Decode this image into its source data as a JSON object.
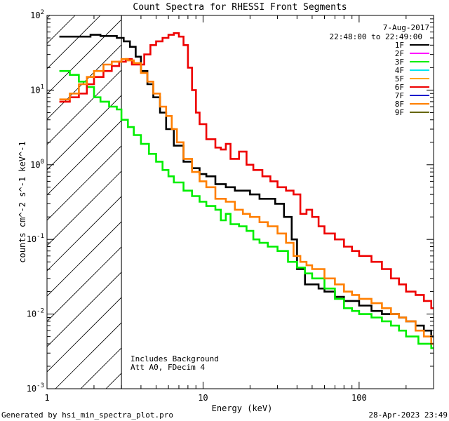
{
  "chart_data": {
    "type": "line",
    "title": "Count Spectra for RHESSI Front Segments",
    "xlabel": "Energy (keV)",
    "ylabel": "counts cm^-2 s^-1 keV^-1",
    "xscale": "log",
    "yscale": "log",
    "xlim": [
      1,
      300
    ],
    "ylim": [
      0.001,
      100
    ],
    "x_ticks": [
      {
        "value": 1,
        "label": "1"
      },
      {
        "value": 10,
        "label": "10"
      },
      {
        "value": 100,
        "label": "100"
      }
    ],
    "y_ticks": [
      {
        "value": 0.001,
        "base": "10",
        "exp": "-3"
      },
      {
        "value": 0.01,
        "base": "10",
        "exp": "-2"
      },
      {
        "value": 0.1,
        "base": "10",
        "exp": "-1"
      },
      {
        "value": 1,
        "base": "10",
        "exp": "0"
      },
      {
        "value": 10,
        "base": "10",
        "exp": "1"
      },
      {
        "value": 100,
        "base": "10",
        "exp": "2"
      }
    ],
    "attenuator_cutoff_keV": 3,
    "date": "7-Aug-2017",
    "time_range": "22:48:00 to 22:49:00",
    "annotations": [
      "Includes Background",
      "Att A0, FDecim 4"
    ],
    "footer_left": "Generated by hsi_min_spectra_plot.pro",
    "footer_right": "28-Apr-2023 23:49",
    "legend": [
      {
        "label": "1F",
        "color": "#000000"
      },
      {
        "label": "2F",
        "color": "#ff00ff"
      },
      {
        "label": "3F",
        "color": "#00ee00"
      },
      {
        "label": "4F",
        "color": "#00e5ee"
      },
      {
        "label": "5F",
        "color": "#ffa500"
      },
      {
        "label": "6F",
        "color": "#ee0000"
      },
      {
        "label": "7F",
        "color": "#0000cc"
      },
      {
        "label": "8F",
        "color": "#ff7f00"
      },
      {
        "label": "9F",
        "color": "#666600"
      }
    ],
    "series": [
      {
        "name": "1F",
        "color": "#000000",
        "points": [
          [
            1.2,
            52
          ],
          [
            1.6,
            52
          ],
          [
            1.9,
            55
          ],
          [
            2.2,
            53
          ],
          [
            2.5,
            53
          ],
          [
            2.8,
            50
          ],
          [
            3.1,
            45
          ],
          [
            3.4,
            38
          ],
          [
            3.7,
            28
          ],
          [
            4.0,
            18
          ],
          [
            4.4,
            12
          ],
          [
            4.8,
            8
          ],
          [
            5.3,
            5
          ],
          [
            5.8,
            3
          ],
          [
            6.5,
            1.8
          ],
          [
            7.5,
            1.1
          ],
          [
            8.5,
            0.9
          ],
          [
            9.5,
            0.75
          ],
          [
            10.5,
            0.7
          ],
          [
            12,
            0.55
          ],
          [
            14,
            0.5
          ],
          [
            16,
            0.45
          ],
          [
            18,
            0.45
          ],
          [
            20,
            0.4
          ],
          [
            23,
            0.35
          ],
          [
            26,
            0.35
          ],
          [
            29,
            0.3
          ],
          [
            33,
            0.2
          ],
          [
            37,
            0.1
          ],
          [
            40,
            0.04
          ],
          [
            45,
            0.025
          ],
          [
            50,
            0.025
          ],
          [
            55,
            0.022
          ],
          [
            60,
            0.02
          ],
          [
            70,
            0.017
          ],
          [
            80,
            0.015
          ],
          [
            90,
            0.015
          ],
          [
            100,
            0.013
          ],
          [
            120,
            0.011
          ],
          [
            140,
            0.01
          ],
          [
            160,
            0.01
          ],
          [
            180,
            0.009
          ],
          [
            200,
            0.008
          ],
          [
            230,
            0.007
          ],
          [
            260,
            0.006
          ],
          [
            290,
            0.005
          ]
        ]
      },
      {
        "name": "3F",
        "color": "#00ee00",
        "points": [
          [
            1.2,
            18
          ],
          [
            1.4,
            16
          ],
          [
            1.6,
            13
          ],
          [
            1.8,
            11
          ],
          [
            2.0,
            8
          ],
          [
            2.2,
            7
          ],
          [
            2.5,
            6
          ],
          [
            2.8,
            5.5
          ],
          [
            3.0,
            4
          ],
          [
            3.3,
            3.2
          ],
          [
            3.6,
            2.5
          ],
          [
            4.0,
            1.9
          ],
          [
            4.5,
            1.4
          ],
          [
            5.0,
            1.1
          ],
          [
            5.5,
            0.85
          ],
          [
            6.0,
            0.7
          ],
          [
            6.5,
            0.58
          ],
          [
            7.5,
            0.45
          ],
          [
            8.5,
            0.38
          ],
          [
            9.5,
            0.32
          ],
          [
            10.5,
            0.28
          ],
          [
            12,
            0.25
          ],
          [
            13,
            0.18
          ],
          [
            14,
            0.22
          ],
          [
            15,
            0.16
          ],
          [
            17,
            0.15
          ],
          [
            19,
            0.13
          ],
          [
            21,
            0.1
          ],
          [
            23,
            0.09
          ],
          [
            26,
            0.08
          ],
          [
            30,
            0.07
          ],
          [
            35,
            0.05
          ],
          [
            40,
            0.042
          ],
          [
            45,
            0.035
          ],
          [
            50,
            0.03
          ],
          [
            60,
            0.022
          ],
          [
            70,
            0.016
          ],
          [
            80,
            0.012
          ],
          [
            90,
            0.011
          ],
          [
            100,
            0.01
          ],
          [
            120,
            0.009
          ],
          [
            140,
            0.008
          ],
          [
            160,
            0.007
          ],
          [
            180,
            0.006
          ],
          [
            200,
            0.005
          ],
          [
            240,
            0.004
          ],
          [
            290,
            0.0035
          ]
        ]
      },
      {
        "name": "6F",
        "color": "#ee0000",
        "points": [
          [
            1.2,
            7
          ],
          [
            1.4,
            8
          ],
          [
            1.6,
            9
          ],
          [
            1.8,
            12
          ],
          [
            2.0,
            15
          ],
          [
            2.3,
            18
          ],
          [
            2.6,
            21
          ],
          [
            2.9,
            24
          ],
          [
            3.2,
            26
          ],
          [
            3.5,
            22
          ],
          [
            3.8,
            22
          ],
          [
            4.2,
            30
          ],
          [
            4.6,
            40
          ],
          [
            5.0,
            45
          ],
          [
            5.5,
            50
          ],
          [
            6.0,
            55
          ],
          [
            6.5,
            58
          ],
          [
            7.0,
            52
          ],
          [
            7.5,
            40
          ],
          [
            8.0,
            20
          ],
          [
            8.5,
            10
          ],
          [
            9.0,
            5
          ],
          [
            9.5,
            3.5
          ],
          [
            10.5,
            2.2
          ],
          [
            12,
            1.7
          ],
          [
            13,
            1.6
          ],
          [
            14,
            1.9
          ],
          [
            15,
            1.2
          ],
          [
            17,
            1.5
          ],
          [
            19,
            1.0
          ],
          [
            21,
            0.85
          ],
          [
            24,
            0.7
          ],
          [
            27,
            0.6
          ],
          [
            30,
            0.5
          ],
          [
            34,
            0.45
          ],
          [
            38,
            0.4
          ],
          [
            42,
            0.22
          ],
          [
            46,
            0.25
          ],
          [
            50,
            0.2
          ],
          [
            55,
            0.15
          ],
          [
            60,
            0.12
          ],
          [
            70,
            0.1
          ],
          [
            80,
            0.08
          ],
          [
            90,
            0.07
          ],
          [
            100,
            0.06
          ],
          [
            120,
            0.05
          ],
          [
            140,
            0.04
          ],
          [
            160,
            0.03
          ],
          [
            180,
            0.025
          ],
          [
            200,
            0.02
          ],
          [
            230,
            0.018
          ],
          [
            260,
            0.015
          ],
          [
            290,
            0.012
          ]
        ]
      },
      {
        "name": "8F",
        "color": "#ff7f00",
        "points": [
          [
            1.2,
            7.5
          ],
          [
            1.4,
            9
          ],
          [
            1.6,
            12
          ],
          [
            1.8,
            15
          ],
          [
            2.0,
            18
          ],
          [
            2.3,
            22
          ],
          [
            2.6,
            24
          ],
          [
            3.0,
            26
          ],
          [
            3.3,
            25
          ],
          [
            3.6,
            23
          ],
          [
            4.0,
            17
          ],
          [
            4.4,
            13
          ],
          [
            4.8,
            9
          ],
          [
            5.3,
            6
          ],
          [
            5.8,
            4.5
          ],
          [
            6.3,
            3
          ],
          [
            6.8,
            2
          ],
          [
            7.5,
            1.2
          ],
          [
            8.5,
            0.8
          ],
          [
            9.5,
            0.6
          ],
          [
            10.5,
            0.5
          ],
          [
            12,
            0.35
          ],
          [
            14,
            0.32
          ],
          [
            16,
            0.25
          ],
          [
            18,
            0.22
          ],
          [
            20,
            0.2
          ],
          [
            23,
            0.17
          ],
          [
            26,
            0.15
          ],
          [
            30,
            0.12
          ],
          [
            34,
            0.09
          ],
          [
            38,
            0.06
          ],
          [
            42,
            0.05
          ],
          [
            46,
            0.045
          ],
          [
            50,
            0.04
          ],
          [
            60,
            0.03
          ],
          [
            70,
            0.025
          ],
          [
            80,
            0.02
          ],
          [
            90,
            0.018
          ],
          [
            100,
            0.016
          ],
          [
            120,
            0.014
          ],
          [
            140,
            0.012
          ],
          [
            160,
            0.01
          ],
          [
            180,
            0.009
          ],
          [
            200,
            0.008
          ],
          [
            230,
            0.006
          ],
          [
            260,
            0.005
          ],
          [
            290,
            0.004
          ]
        ]
      }
    ]
  }
}
